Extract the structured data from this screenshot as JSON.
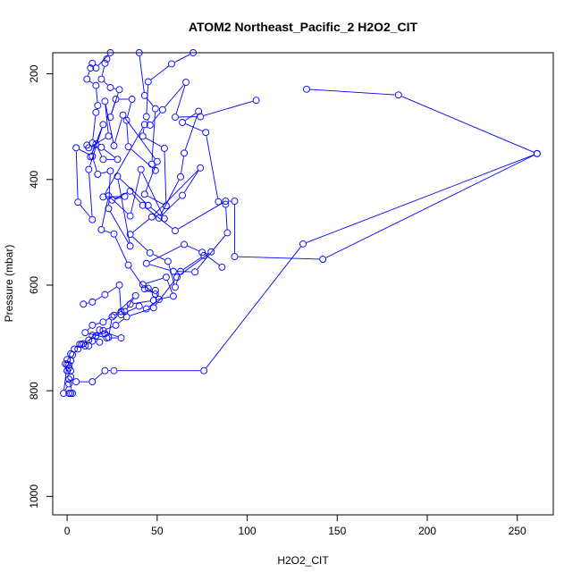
{
  "chart_data": {
    "type": "line",
    "title": "ATOM2 Northeast_Pacific_2 H2O2_CIT",
    "xlabel": "H2O2_CIT",
    "ylabel": "Pressure (mbar)",
    "xlim": [
      -8,
      270
    ],
    "ylim": [
      1035,
      160
    ],
    "y_reversed": true,
    "x_ticks": [
      0,
      50,
      100,
      150,
      200,
      250
    ],
    "y_ticks": [
      200,
      400,
      600,
      800,
      1000
    ],
    "marker": "open-circle",
    "line_color": "#0000ff",
    "grid": false,
    "legend": "none",
    "series": [
      {
        "values": [
          [
            1,
            805
          ],
          [
            2,
            805
          ],
          [
            3,
            805
          ],
          [
            1,
            778
          ],
          [
            5,
            783
          ],
          [
            14,
            783
          ],
          [
            21,
            762
          ],
          [
            26,
            762
          ],
          [
            76,
            762
          ],
          [
            131,
            522
          ],
          [
            261,
            351
          ],
          [
            142,
            551
          ],
          [
            93,
            546
          ],
          [
            93,
            441
          ],
          [
            88,
            441
          ],
          [
            60,
            497
          ],
          [
            42,
            449
          ],
          [
            35,
            422
          ],
          [
            25,
            439
          ],
          [
            32,
            432
          ],
          [
            20,
            433
          ],
          [
            43,
            296
          ],
          [
            42,
            318
          ],
          [
            54,
            341
          ],
          [
            55,
            450
          ],
          [
            43,
            428
          ],
          [
            50,
            366
          ],
          [
            31,
            278
          ],
          [
            26,
            336
          ],
          [
            21,
            252
          ],
          [
            23,
            318
          ],
          [
            12,
            340
          ],
          [
            19,
            339
          ],
          [
            28,
            362
          ],
          [
            20,
            362
          ],
          [
            16,
            333
          ],
          [
            13,
            357
          ],
          [
            20,
            296
          ],
          [
            12,
            381
          ],
          [
            14,
            476
          ],
          [
            6,
            443
          ],
          [
            5,
            340
          ],
          [
            14,
            356
          ],
          [
            17,
            390
          ],
          [
            24,
            384
          ],
          [
            23,
            455
          ],
          [
            35,
            526
          ],
          [
            28,
            394
          ],
          [
            45,
            449
          ],
          [
            54,
            474
          ],
          [
            41,
            381
          ],
          [
            35,
            469
          ],
          [
            23,
            431
          ],
          [
            19,
            495
          ],
          [
            26,
            503
          ],
          [
            34,
            562
          ],
          [
            43,
            607
          ],
          [
            49,
            617
          ],
          [
            42,
            599
          ],
          [
            55,
            585
          ],
          [
            59,
            621
          ],
          [
            48,
            629
          ],
          [
            35,
            636
          ],
          [
            32,
            650
          ],
          [
            38,
            620
          ],
          [
            26,
            657
          ],
          [
            20,
            670
          ],
          [
            14,
            676
          ],
          [
            10,
            690
          ],
          [
            22,
            700
          ],
          [
            30,
            700
          ],
          [
            18,
            685
          ],
          [
            12,
            704
          ],
          [
            8,
            712
          ],
          [
            4,
            721
          ],
          [
            2,
            730
          ],
          [
            0,
            741
          ],
          [
            -1,
            749
          ],
          [
            0,
            762
          ],
          [
            2,
            774
          ],
          [
            1,
            787
          ],
          [
            -2,
            805
          ],
          [
            0,
            750
          ],
          [
            1,
            757
          ],
          [
            2,
            762
          ]
        ]
      },
      {
        "values": [
          [
            86,
            566
          ],
          [
            75,
            538
          ],
          [
            65,
            523
          ],
          [
            44,
            559
          ],
          [
            59,
            574
          ],
          [
            71,
            575
          ],
          [
            89,
            501
          ],
          [
            88,
            447
          ],
          [
            84,
            442
          ],
          [
            77,
            311
          ],
          [
            64,
            292
          ],
          [
            73,
            271
          ],
          [
            65,
            350
          ],
          [
            63,
            395
          ],
          [
            51,
            473
          ],
          [
            64,
            430
          ],
          [
            74,
            378
          ],
          [
            47,
            471
          ],
          [
            35,
            504
          ],
          [
            46,
            539
          ],
          [
            56,
            555
          ],
          [
            60,
            604
          ],
          [
            63,
            574
          ],
          [
            76,
            544
          ],
          [
            80,
            537
          ],
          [
            61,
            585
          ],
          [
            48,
            643
          ],
          [
            33,
            660
          ],
          [
            27,
            676
          ],
          [
            20,
            686
          ],
          [
            16,
            696
          ],
          [
            9,
            711
          ],
          [
            6,
            721
          ],
          [
            3,
            732
          ],
          [
            2,
            743
          ],
          [
            1,
            751
          ],
          [
            0,
            762
          ]
        ]
      },
      {
        "values": [
          [
            105,
            250
          ],
          [
            74,
            281
          ],
          [
            60,
            282
          ],
          [
            66,
            216
          ],
          [
            53,
            268
          ],
          [
            46,
            297
          ],
          [
            44,
            281
          ],
          [
            45,
            215
          ],
          [
            58,
            181
          ],
          [
            70,
            160
          ]
        ]
      },
      {
        "values": [
          [
            133,
            229
          ],
          [
            184,
            240
          ],
          [
            261,
            351
          ]
        ]
      },
      {
        "values": [
          [
            24,
            160
          ],
          [
            16,
            189
          ],
          [
            14,
            180
          ],
          [
            13,
            189
          ],
          [
            11,
            210
          ],
          [
            16,
            222
          ],
          [
            17,
            260
          ],
          [
            16,
            273
          ],
          [
            14,
            331
          ],
          [
            11,
            335
          ]
        ]
      },
      {
        "values": [
          [
            40,
            160
          ],
          [
            43,
            241
          ],
          [
            49,
            266
          ],
          [
            47,
            371
          ],
          [
            49,
            383
          ],
          [
            34,
            338
          ],
          [
            33,
            288
          ],
          [
            36,
            248
          ],
          [
            27,
            248
          ],
          [
            24,
            282
          ],
          [
            29,
            230
          ],
          [
            24,
            226
          ],
          [
            19,
            210
          ],
          [
            21,
            180
          ],
          [
            22,
            172
          ]
        ]
      },
      {
        "values": [
          [
            9,
            636
          ],
          [
            14,
            632
          ],
          [
            21,
            618
          ],
          [
            29,
            600
          ],
          [
            30,
            656
          ],
          [
            40,
            640
          ],
          [
            44,
            645
          ],
          [
            51,
            627
          ],
          [
            49,
            610
          ],
          [
            45,
            606
          ]
        ]
      },
      {
        "values": [
          [
            7,
            712
          ],
          [
            10,
            715
          ],
          [
            12,
            715
          ],
          [
            14,
            706
          ],
          [
            18,
            708
          ],
          [
            14,
            695
          ],
          [
            21,
            692
          ],
          [
            23,
            699
          ],
          [
            25,
            660
          ],
          [
            30,
            650
          ]
        ]
      }
    ]
  }
}
